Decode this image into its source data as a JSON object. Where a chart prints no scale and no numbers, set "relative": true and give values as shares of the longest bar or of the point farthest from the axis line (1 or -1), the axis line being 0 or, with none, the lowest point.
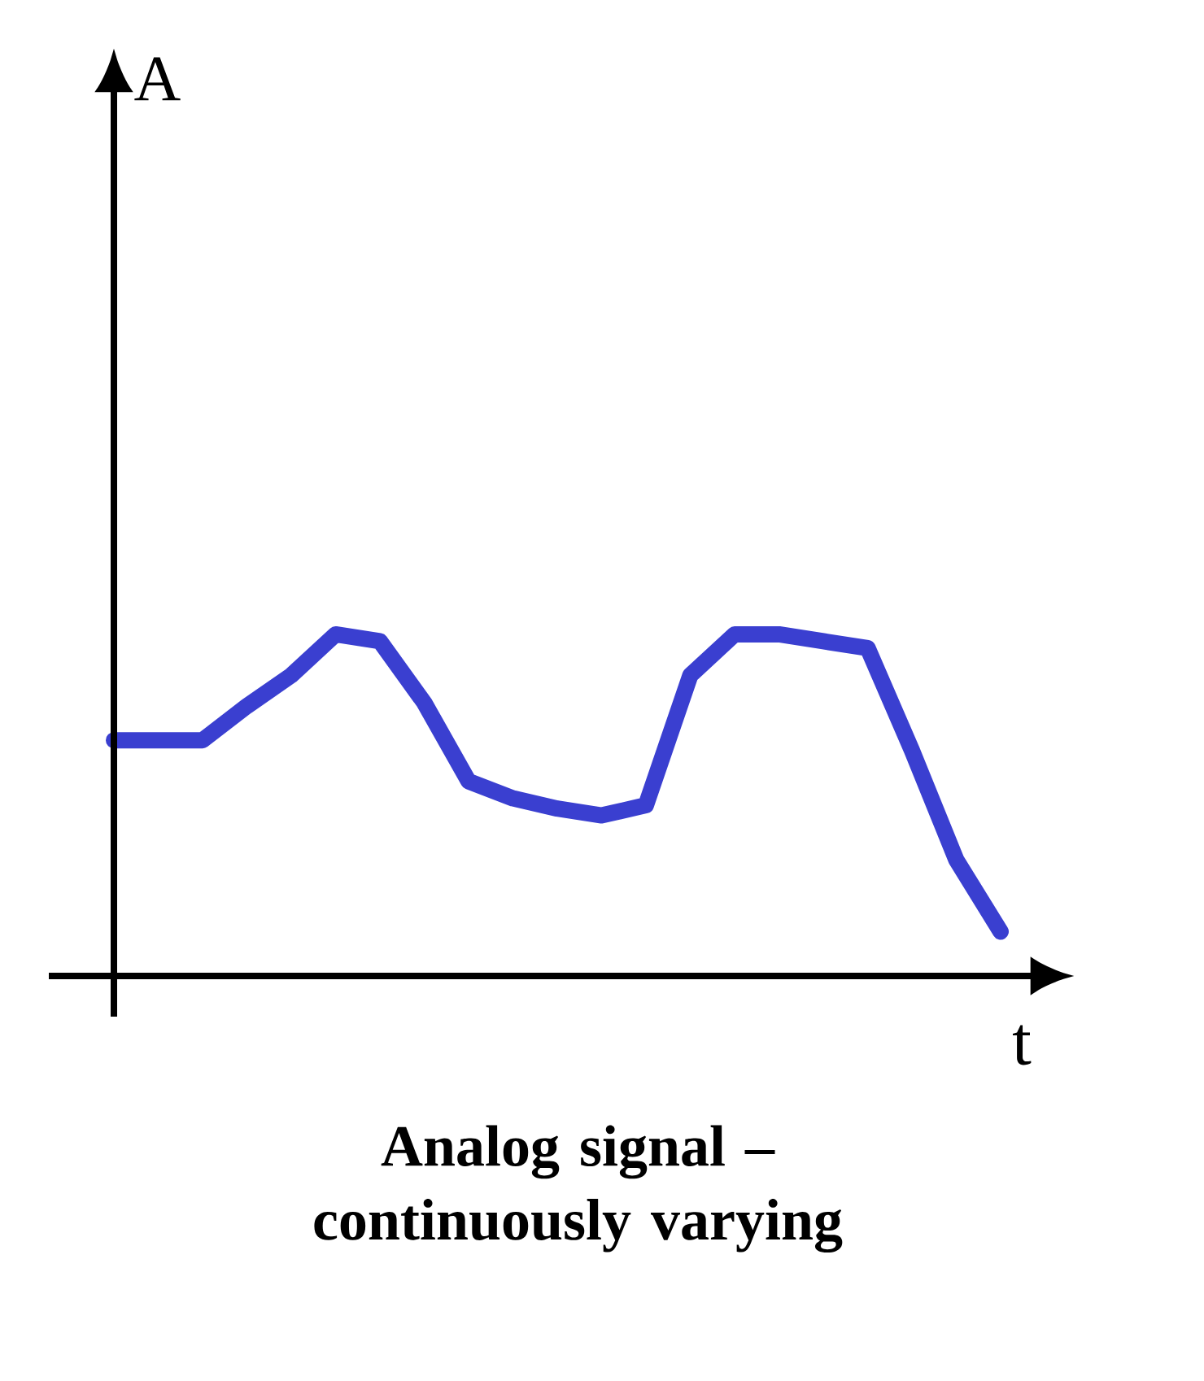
{
  "chart_data": {
    "type": "line",
    "relative": true,
    "title": "Analog signal – continuously varying",
    "xlabel": "t",
    "annotations": [
      "A"
    ],
    "color": "#3a3fd0",
    "categories": [
      null,
      null,
      null,
      null,
      null,
      null,
      null,
      null,
      null,
      null,
      null,
      null,
      null,
      null,
      null,
      null,
      null,
      null,
      null,
      null,
      null
    ],
    "values": [
      0.69,
      0.69,
      0.69,
      0.79,
      0.88,
      1.0,
      0.98,
      0.8,
      0.57,
      0.52,
      0.49,
      0.47,
      0.5,
      0.88,
      1.0,
      1.0,
      0.98,
      0.96,
      0.66,
      0.34,
      0.13
    ]
  }
}
